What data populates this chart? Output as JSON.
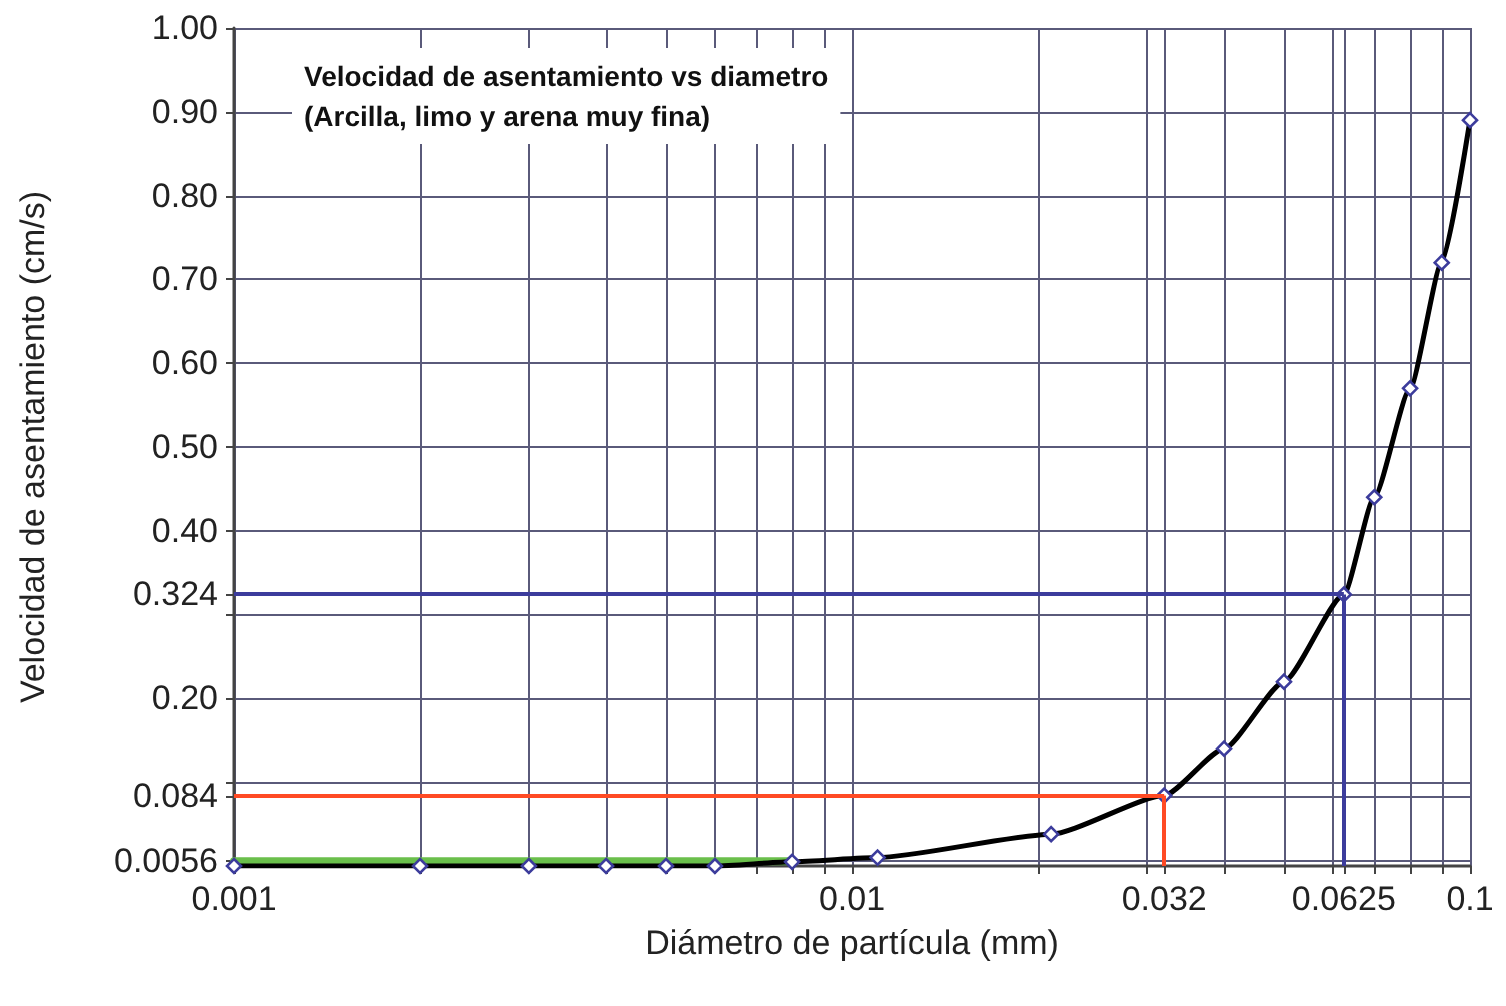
{
  "chart_data": {
    "type": "line",
    "title": "Velocidad de asentamiento vs diametro\n(Arcilla, limo y arena muy fina)",
    "xlabel": "Diámetro de partícula (mm)",
    "ylabel": "Velocidad de asentamiento (cm/s)",
    "log": "x",
    "grid": true,
    "marker": "diamond",
    "line_style": "solid",
    "xlim": [
      0.001,
      0.1
    ],
    "ylim": [
      0,
      1
    ],
    "xticks": [
      0.001,
      {
        "value": 0.002,
        "label": null
      },
      {
        "value": 0.003,
        "label": null
      },
      {
        "value": 0.004,
        "label": null
      },
      {
        "value": 0.005,
        "label": null
      },
      {
        "value": 0.006,
        "label": null
      },
      {
        "value": 0.007,
        "label": null
      },
      {
        "value": 0.008,
        "label": null
      },
      {
        "value": 0.009,
        "label": null
      },
      0.01,
      {
        "value": 0.02,
        "label": null
      },
      {
        "value": 0.03,
        "label": null
      },
      0.032,
      {
        "value": 0.04,
        "label": null
      },
      {
        "value": 0.05,
        "label": null
      },
      {
        "value": 0.06,
        "label": null
      },
      0.0625,
      {
        "value": 0.07,
        "label": null
      },
      {
        "value": 0.08,
        "label": null
      },
      {
        "value": 0.09,
        "label": null
      },
      0.1
    ],
    "yticks": [
      0.0056,
      0.084,
      {
        "value": 0.1,
        "label": null
      },
      {
        "value": 0.2,
        "label": "0.20"
      },
      {
        "value": 0.3,
        "label": null
      },
      0.324,
      {
        "value": 0.4,
        "label": "0.40"
      },
      {
        "value": 0.5,
        "label": "0.50"
      },
      {
        "value": 0.6,
        "label": "0.60"
      },
      {
        "value": 0.7,
        "label": "0.70"
      },
      {
        "value": 0.8,
        "label": "0.80"
      },
      {
        "value": 0.9,
        "label": "0.90"
      },
      {
        "value": 1,
        "label": "1.00"
      }
    ],
    "series": [
      {
        "color": "#000000",
        "x": [
          0.001,
          0.002,
          0.003,
          0.004,
          0.005,
          0.006,
          0.008,
          0.011,
          0.021,
          0.032,
          0.04,
          0.05,
          0.0625,
          0.07,
          0.08,
          0.09,
          0.1
        ],
        "values": [
          0,
          0,
          0,
          0,
          0,
          0,
          0.005,
          0.01,
          0.038,
          0.084,
          0.14,
          0.22,
          0.324,
          0.44,
          0.57,
          0.72,
          0.89
        ]
      },
      {
        "color": "#6abf4b",
        "marker": "none",
        "x": [
          0.001,
          0.008
        ],
        "values": [
          0.0056,
          0.0056
        ]
      }
    ],
    "ref_lines": [
      {
        "axis": "y",
        "value": 0.324,
        "color": "#3c3c9c"
      },
      {
        "axis": "x",
        "value": 0.0625,
        "color": "#3c3c9c"
      },
      {
        "axis": "y",
        "value": 0.084,
        "color": "#ff4a24"
      },
      {
        "axis": "x",
        "value": 0.032,
        "color": "#ff4a24"
      }
    ]
  }
}
